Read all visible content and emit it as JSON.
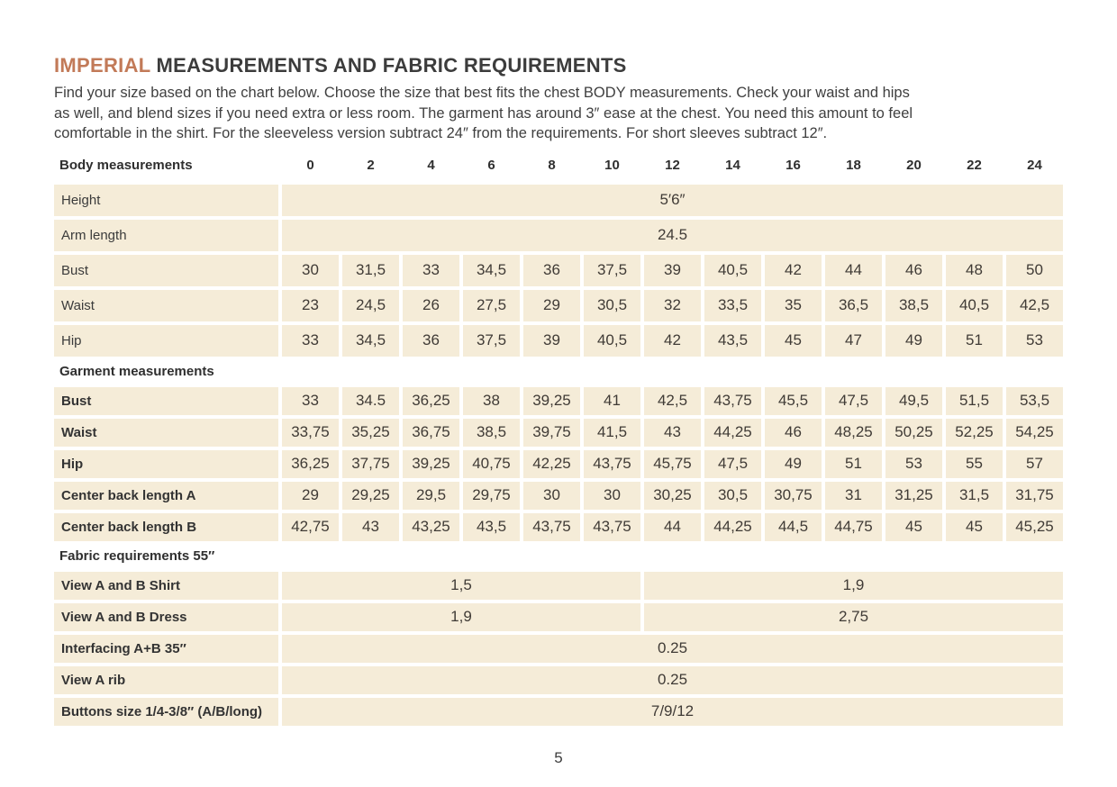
{
  "colors": {
    "accent": "#c27a58",
    "cell_bg": "#f5ecd8",
    "text": "#3c3c3c"
  },
  "title": {
    "accent": "IMPERIAL",
    "rest": " MEASUREMENTS AND FABRIC REQUIREMENTS"
  },
  "intro_lines": [
    "Find your size based on the chart below. Choose the size that best fits the chest BODY measurements.  Check your waist and hips",
    "as well, and blend sizes if you need extra or less room. The garment has around 3″ ease at the chest. You need this amount to feel",
    "comfortable in the shirt. For the sleeveless version subtract 24″ from the requirements. For short sleeves subtract 12″."
  ],
  "table": {
    "header_label": "Body measurements",
    "sizes": [
      "0",
      "2",
      "4",
      "6",
      "8",
      "10",
      "12",
      "14",
      "16",
      "18",
      "20",
      "22",
      "24"
    ],
    "rows": [
      {
        "type": "full",
        "group": "body",
        "bold": false,
        "label": "Height",
        "value": "5′6″"
      },
      {
        "type": "full",
        "group": "body",
        "bold": false,
        "label": "Arm length",
        "value": "24.5"
      },
      {
        "type": "cells",
        "group": "body",
        "bold": false,
        "label": "Bust",
        "values": [
          "30",
          "31,5",
          "33",
          "34,5",
          "36",
          "37,5",
          "39",
          "40,5",
          "42",
          "44",
          "46",
          "48",
          "50"
        ]
      },
      {
        "type": "cells",
        "group": "body",
        "bold": false,
        "label": "Waist",
        "values": [
          "23",
          "24,5",
          "26",
          "27,5",
          "29",
          "30,5",
          "32",
          "33,5",
          "35",
          "36,5",
          "38,5",
          "40,5",
          "42,5"
        ]
      },
      {
        "type": "cells",
        "group": "body",
        "bold": false,
        "label": "Hip",
        "values": [
          "33",
          "34,5",
          "36",
          "37,5",
          "39",
          "40,5",
          "42",
          "43,5",
          "45",
          "47",
          "49",
          "51",
          "53"
        ]
      },
      {
        "type": "section",
        "label": "Garment measurements"
      },
      {
        "type": "cells",
        "group": "garment",
        "bold": true,
        "label": "Bust",
        "values": [
          "33",
          "34.5",
          "36,25",
          "38",
          "39,25",
          "41",
          "42,5",
          "43,75",
          "45,5",
          "47,5",
          "49,5",
          "51,5",
          "53,5"
        ]
      },
      {
        "type": "cells",
        "group": "garment",
        "bold": true,
        "label": "Waist",
        "values": [
          "33,75",
          "35,25",
          "36,75",
          "38,5",
          "39,75",
          "41,5",
          "43",
          "44,25",
          "46",
          "48,25",
          "50,25",
          "52,25",
          "54,25"
        ]
      },
      {
        "type": "cells",
        "group": "garment",
        "bold": true,
        "label": "Hip",
        "values": [
          "36,25",
          "37,75",
          "39,25",
          "40,75",
          "42,25",
          "43,75",
          "45,75",
          "47,5",
          "49",
          "51",
          "53",
          "55",
          "57"
        ]
      },
      {
        "type": "cells",
        "group": "garment",
        "bold": true,
        "label": "Center back length A",
        "values": [
          "29",
          "29,25",
          "29,5",
          "29,75",
          "30",
          "30",
          "30,25",
          "30,5",
          "30,75",
          "31",
          "31,25",
          "31,5",
          "31,75"
        ]
      },
      {
        "type": "cells",
        "group": "garment",
        "bold": true,
        "label": "Center back length B",
        "values": [
          "42,75",
          "43",
          "43,25",
          "43,5",
          "43,75",
          "43,75",
          "44",
          "44,25",
          "44,5",
          "44,75",
          "45",
          "45",
          "45,25"
        ]
      },
      {
        "type": "section",
        "label": "Fabric requirements 55″"
      },
      {
        "type": "split",
        "group": "fabric",
        "bold": true,
        "label": "View A and B Shirt",
        "left": "1,5",
        "right": "1,9"
      },
      {
        "type": "split",
        "group": "fabric",
        "bold": true,
        "label": "View A and B Dress",
        "left": "1,9",
        "right": "2,75"
      },
      {
        "type": "full",
        "group": "fabric",
        "bold": true,
        "label": "Interfacing  A+B 35″",
        "value": "0.25"
      },
      {
        "type": "full",
        "group": "fabric",
        "bold": true,
        "label": "View A rib",
        "value": "0.25"
      },
      {
        "type": "full",
        "group": "fabric",
        "bold": true,
        "label": "Buttons size 1/4-3/8″ (A/B/long)",
        "value": "7/9/12"
      }
    ]
  },
  "footer": {
    "page_number": "5"
  }
}
